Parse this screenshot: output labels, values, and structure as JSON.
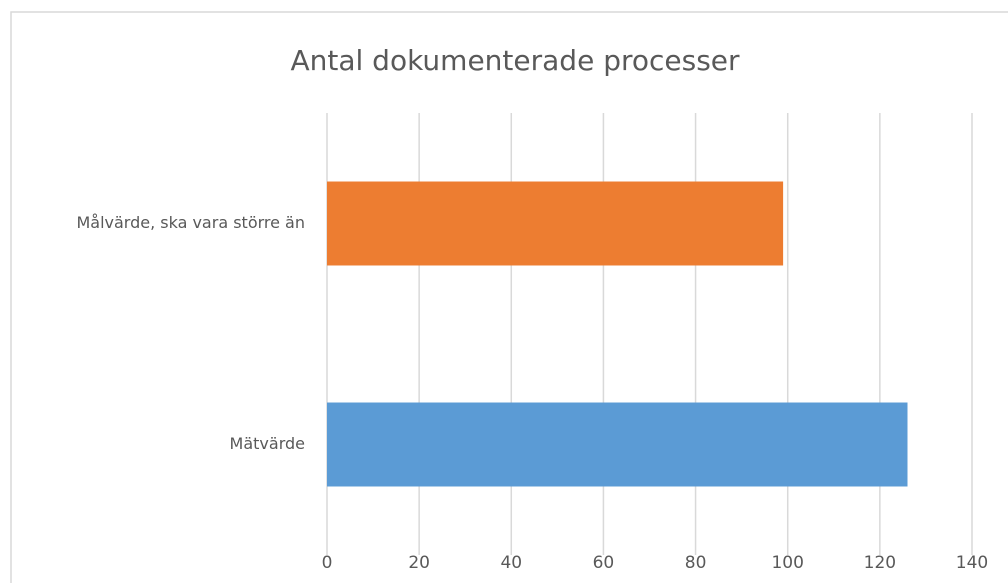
{
  "chart_data": {
    "type": "bar",
    "orientation": "horizontal",
    "title": "Antal dokumenterade processer",
    "categories": [
      "Målvärde, ska vara större än",
      "Mätvärde"
    ],
    "values": [
      99,
      126
    ],
    "colors": [
      "#ed7d31",
      "#5b9bd5"
    ],
    "xlim": [
      0,
      140
    ],
    "xticks": [
      0,
      20,
      40,
      60,
      80,
      100,
      120,
      140
    ],
    "grid": true
  }
}
